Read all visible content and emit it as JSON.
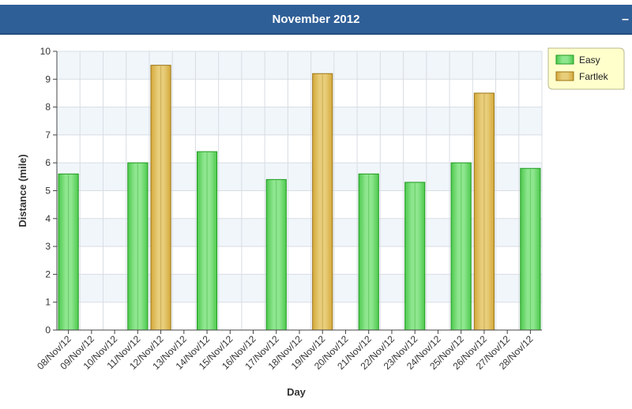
{
  "header": {
    "title": "November 2012",
    "collapse_label": "–"
  },
  "colors": {
    "header_bg": "#2f5f97",
    "easy": "#4dc94d",
    "easy_stroke": "#1f9a1f",
    "fartlek": "#d4a93a",
    "fartlek_stroke": "#9a7416",
    "legend_bg": "#ffffcc"
  },
  "chart_data": {
    "type": "bar",
    "xlabel": "Day",
    "ylabel": "Distance (mile)",
    "ylim": [
      0,
      10
    ],
    "yticks": [
      0,
      1,
      2,
      3,
      4,
      5,
      6,
      7,
      8,
      9,
      10
    ],
    "grid": true,
    "legend_position": "top-right",
    "categories": [
      "08/Nov/12",
      "09/Nov/12",
      "10/Nov/12",
      "11/Nov/12",
      "12/Nov/12",
      "13/Nov/12",
      "14/Nov/12",
      "15/Nov/12",
      "16/Nov/12",
      "17/Nov/12",
      "18/Nov/12",
      "19/Nov/12",
      "20/Nov/12",
      "21/Nov/12",
      "22/Nov/12",
      "23/Nov/12",
      "24/Nov/12",
      "25/Nov/12",
      "26/Nov/12",
      "27/Nov/12",
      "28/Nov/12"
    ],
    "series": [
      {
        "name": "Easy",
        "color_key": "easy",
        "values": [
          5.6,
          null,
          null,
          6.0,
          null,
          null,
          6.4,
          null,
          null,
          5.4,
          null,
          null,
          null,
          5.6,
          null,
          5.3,
          null,
          6.0,
          null,
          null,
          5.8
        ]
      },
      {
        "name": "Fartlek",
        "color_key": "fartlek",
        "values": [
          null,
          null,
          null,
          null,
          9.5,
          null,
          null,
          null,
          null,
          null,
          null,
          9.2,
          null,
          null,
          null,
          null,
          null,
          null,
          8.5,
          null,
          null
        ]
      }
    ]
  }
}
